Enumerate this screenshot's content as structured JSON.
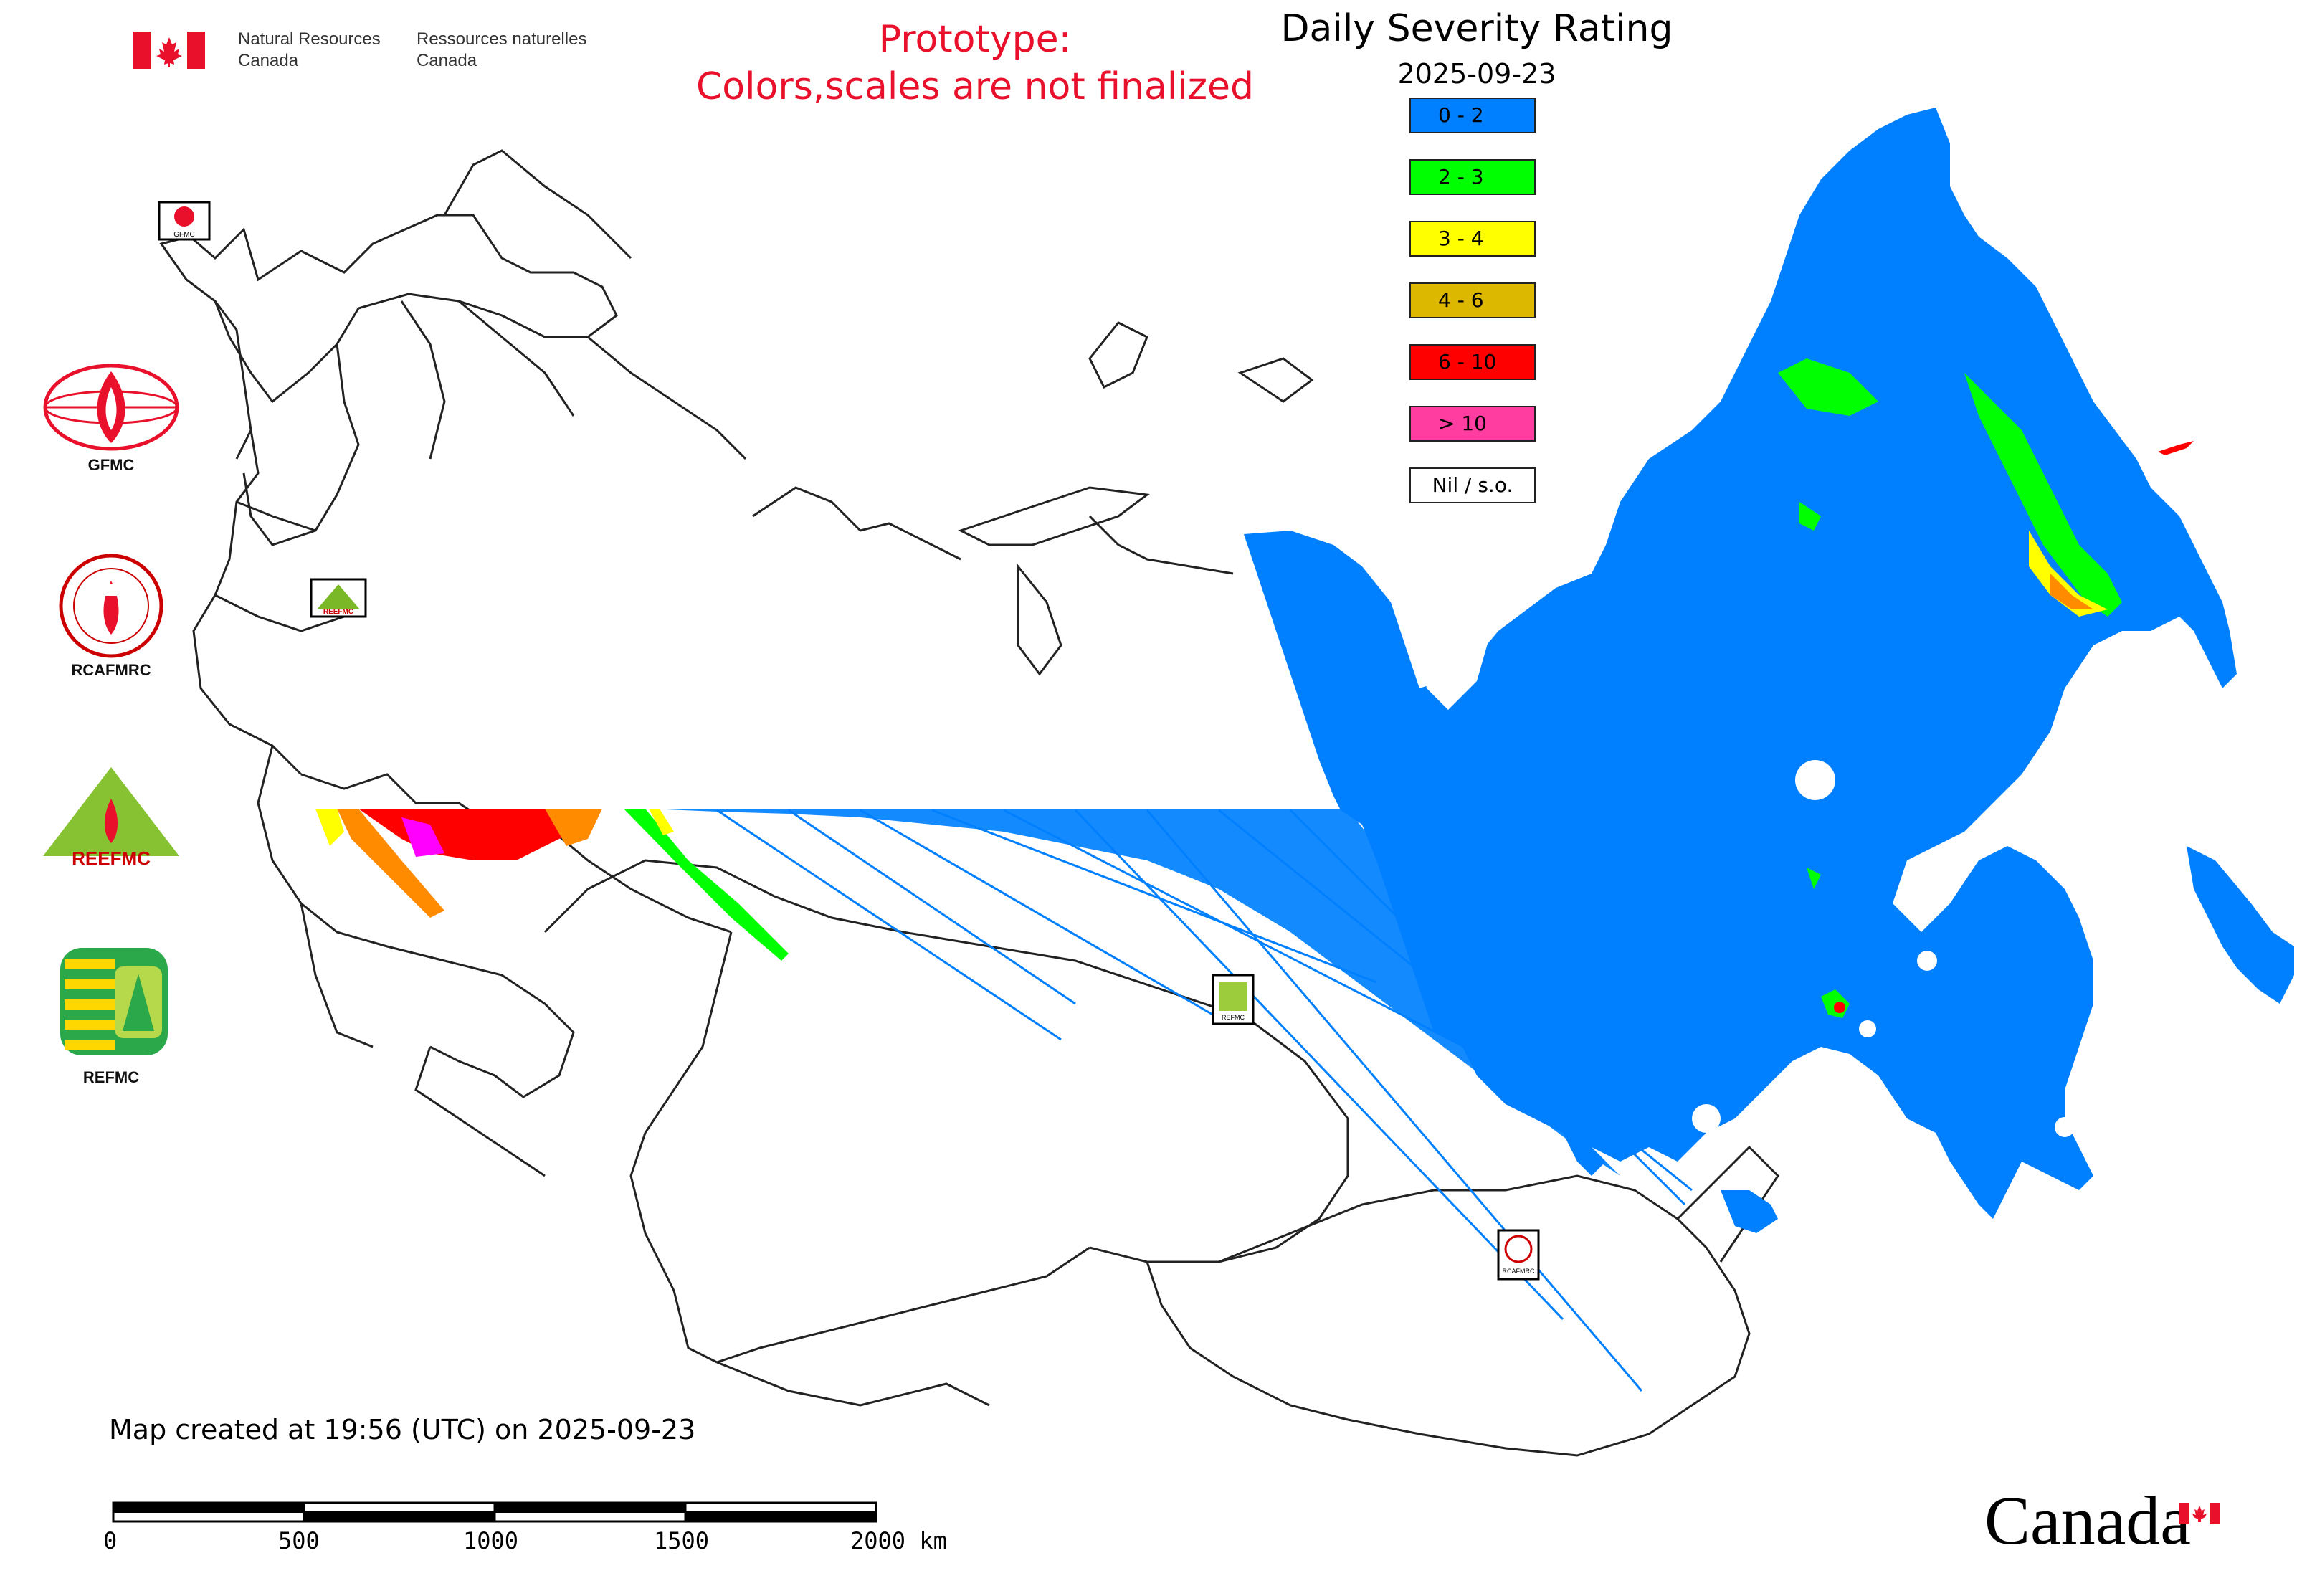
{
  "header": {
    "gov_en_line1": "Natural Resources",
    "gov_en_line2": "Canada",
    "gov_fr_line1": "Ressources naturelles",
    "gov_fr_line2": "Canada",
    "prototype_line1": "Prototype:",
    "prototype_line2": "Colors,scales are not finalized"
  },
  "map": {
    "title": "Daily Severity Rating",
    "date": "2025-09-23",
    "legend": [
      {
        "label": "0 - 2",
        "color": "#0080ff"
      },
      {
        "label": "2 - 3",
        "color": "#00ff00"
      },
      {
        "label": "3 - 4",
        "color": "#ffff00"
      },
      {
        "label": "4 - 6",
        "color": "#dcb800"
      },
      {
        "label": "6 - 10",
        "color": "#ff0000"
      },
      {
        "label": "> 10",
        "color": "#ff3ca0"
      },
      {
        "label": "Nil / s.o.",
        "color": "#ffffff"
      }
    ]
  },
  "side_logos": {
    "gfmc": "GFMC",
    "rcafmrc": "RCAFMRC",
    "reefmc_wordmark": "REEFMC",
    "refmc": "REFMC"
  },
  "inset_labels": {
    "gfmc": "GFMC",
    "reefmc": "REEFMC",
    "refmc": "REFMC",
    "rcafmrc": "RCAFMRC"
  },
  "footer": {
    "created": "Map created at 19:56 (UTC) on 2025-09-23",
    "scale_labels": [
      "0",
      "500",
      "1000",
      "1500",
      "2000 km"
    ],
    "wordmark": "Canada"
  },
  "icons": [
    "canada-flag-icon",
    "maple-leaf-icon"
  ]
}
